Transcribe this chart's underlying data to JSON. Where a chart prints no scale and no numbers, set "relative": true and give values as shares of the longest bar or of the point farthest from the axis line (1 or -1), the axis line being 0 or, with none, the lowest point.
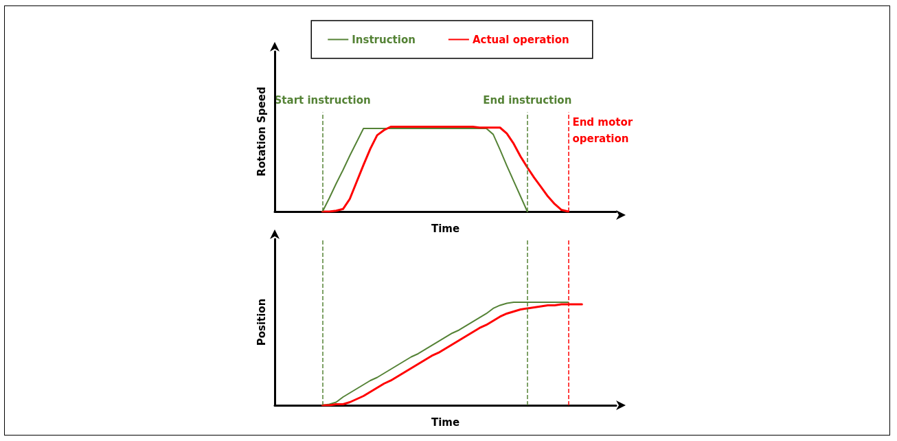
{
  "chart_data": [
    {
      "type": "line",
      "relative": true,
      "xlabel": "Time",
      "ylabel": "Rotation Speed",
      "legend": "top",
      "grid": false,
      "marker": "none",
      "line_style": "solid",
      "categories": [
        null,
        null,
        null,
        null,
        null,
        null,
        null,
        null,
        null,
        null,
        null,
        null,
        null,
        null,
        null,
        null,
        null,
        null,
        null,
        null,
        null,
        null,
        null,
        null,
        null,
        null,
        null,
        null,
        null,
        null,
        null,
        null,
        null,
        null,
        null,
        null,
        null,
        null,
        null,
        null,
        null,
        null,
        null,
        null,
        null,
        null,
        null,
        null,
        null,
        null,
        null
      ],
      "series": [
        {
          "name": "Instruction",
          "color": "#548235",
          "values": [
            null,
            null,
            null,
            null,
            null,
            null,
            null,
            0,
            0.16,
            0.33,
            0.49,
            0.66,
            0.82,
            0.98,
            0.98,
            0.98,
            0.98,
            0.98,
            0.98,
            0.98,
            0.98,
            0.98,
            0.98,
            0.98,
            0.98,
            0.98,
            0.98,
            0.98,
            0.98,
            0.98,
            0.98,
            0.98,
            0.91,
            0.73,
            0.54,
            0.36,
            0.18,
            0,
            null,
            null,
            null,
            null,
            null,
            null,
            null,
            null,
            null,
            null,
            null,
            null,
            null
          ]
        },
        {
          "name": "Actual operation",
          "color": "#ff0000",
          "values": [
            null,
            null,
            null,
            null,
            null,
            null,
            null,
            0,
            0,
            0.01,
            0.03,
            0.15,
            0.35,
            0.55,
            0.74,
            0.9,
            0.96,
            1,
            1,
            1,
            1,
            1,
            1,
            1,
            1,
            1,
            1,
            1,
            1,
            1,
            0.99,
            0.99,
            0.99,
            0.99,
            0.92,
            0.8,
            0.65,
            0.52,
            0.4,
            0.29,
            0.18,
            0.09,
            0.02,
            0,
            null,
            null,
            null,
            null,
            null,
            null,
            null
          ]
        }
      ],
      "annotations": [
        "Start instruction",
        "End instruction",
        "End motor operation"
      ]
    },
    {
      "type": "line",
      "relative": true,
      "xlabel": "Time",
      "ylabel": "Position",
      "grid": false,
      "marker": "none",
      "line_style": "solid",
      "categories": [
        null,
        null,
        null,
        null,
        null,
        null,
        null,
        null,
        null,
        null,
        null,
        null,
        null,
        null,
        null,
        null,
        null,
        null,
        null,
        null,
        null,
        null,
        null,
        null,
        null,
        null,
        null,
        null,
        null,
        null,
        null,
        null,
        null,
        null,
        null,
        null,
        null,
        null,
        null,
        null,
        null,
        null,
        null,
        null,
        null,
        null,
        null,
        null,
        null,
        null,
        null
      ],
      "series": [
        {
          "color": "#548235",
          "values": [
            null,
            null,
            null,
            null,
            null,
            null,
            null,
            0,
            0.01,
            0.03,
            0.08,
            0.12,
            0.16,
            0.2,
            0.24,
            0.27,
            0.31,
            0.35,
            0.39,
            0.43,
            0.47,
            0.5,
            0.54,
            0.58,
            0.62,
            0.66,
            0.7,
            0.73,
            0.77,
            0.81,
            0.85,
            0.89,
            0.94,
            0.97,
            0.99,
            1,
            1,
            1,
            1,
            1,
            1,
            1,
            1,
            1,
            null,
            null,
            null,
            null,
            null,
            null,
            null
          ]
        },
        {
          "color": "#ff0000",
          "values": [
            null,
            null,
            null,
            null,
            null,
            null,
            null,
            0,
            0,
            0.01,
            0.01,
            0.03,
            0.06,
            0.09,
            0.13,
            0.17,
            0.21,
            0.24,
            0.28,
            0.32,
            0.36,
            0.4,
            0.44,
            0.48,
            0.51,
            0.55,
            0.59,
            0.63,
            0.67,
            0.71,
            0.75,
            0.78,
            0.82,
            0.86,
            0.89,
            0.91,
            0.93,
            0.94,
            0.95,
            0.96,
            0.97,
            0.97,
            0.98,
            0.98,
            0.98,
            0.98,
            null,
            null,
            null,
            null,
            null
          ]
        }
      ]
    }
  ]
}
